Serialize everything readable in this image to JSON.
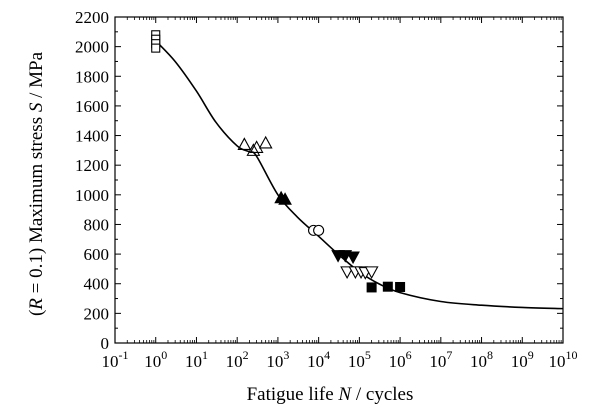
{
  "chart_data": {
    "type": "scatter",
    "x_scale": "log",
    "xlim_exponent": [
      -1,
      10
    ],
    "ylim": [
      0,
      2200
    ],
    "yticks": [
      "0",
      "200",
      "400",
      "600",
      "800",
      "1000",
      "1200",
      "1400",
      "1600",
      "1800",
      "2000",
      "2200"
    ],
    "xtick_base": "10",
    "xtick_exponents": [
      "-1",
      "0",
      "1",
      "2",
      "3",
      "4",
      "5",
      "6",
      "7",
      "8",
      "9",
      "10"
    ],
    "xlabel": {
      "text": "Fatigue life ",
      "var": "N",
      "unit": " / cycles"
    },
    "ylabel": {
      "prefix": "(",
      "var1": "R",
      "mid": " = 0.1) Maximum stress ",
      "var2": "S",
      "unit": " / MPa"
    },
    "grid": false,
    "legend": "none",
    "series": [
      {
        "marker": "open-square",
        "points": [
          [
            1,
            2080
          ],
          [
            1,
            2050
          ],
          [
            1,
            2020
          ],
          [
            1,
            1990
          ]
        ]
      },
      {
        "marker": "open-triangle",
        "points": [
          [
            150,
            1340
          ],
          [
            250,
            1300
          ],
          [
            300,
            1320
          ],
          [
            500,
            1350
          ]
        ]
      },
      {
        "marker": "filled-triangle",
        "points": [
          [
            1200,
            980
          ],
          [
            1500,
            970
          ]
        ]
      },
      {
        "marker": "open-circle",
        "points": [
          [
            7500,
            760
          ],
          [
            10000,
            760
          ]
        ]
      },
      {
        "marker": "filled-down-triangle",
        "points": [
          [
            30000,
            590
          ],
          [
            45000,
            590
          ],
          [
            70000,
            580
          ]
        ]
      },
      {
        "marker": "open-down-triangle",
        "points": [
          [
            50000,
            480
          ],
          [
            80000,
            480
          ],
          [
            110000,
            480
          ],
          [
            140000,
            475
          ],
          [
            200000,
            480
          ]
        ]
      },
      {
        "marker": "filled-square",
        "points": [
          [
            200000,
            375
          ],
          [
            500000,
            380
          ],
          [
            1000000,
            378
          ]
        ]
      }
    ],
    "fit_curve": [
      [
        0.9,
        2060
      ],
      [
        1,
        2040
      ],
      [
        3,
        1900
      ],
      [
        10,
        1700
      ],
      [
        30,
        1490
      ],
      [
        100,
        1330
      ],
      [
        200,
        1290
      ],
      [
        300,
        1260
      ],
      [
        1000,
        1000
      ],
      [
        3000,
        850
      ],
      [
        10000,
        720
      ],
      [
        30000,
        600
      ],
      [
        100000,
        480
      ],
      [
        300000,
        400
      ],
      [
        1000000,
        340
      ],
      [
        10000000,
        280
      ],
      [
        100000000,
        255
      ],
      [
        1000000000,
        240
      ],
      [
        10000000000,
        232
      ]
    ]
  }
}
